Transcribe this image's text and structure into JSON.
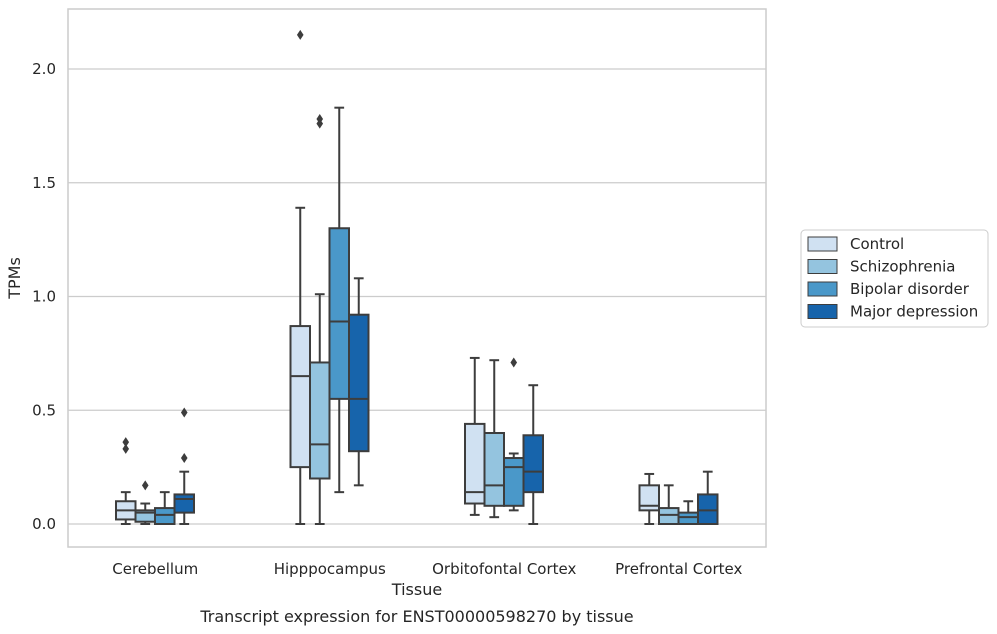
{
  "caption": "Transcript expression for ENST00000598270 by tissue",
  "chart_data": {
    "type": "boxplot",
    "xlabel": "Tissue",
    "ylabel": "TPMs",
    "ylim": [
      -0.1,
      2.27
    ],
    "yticks": [
      "0.0",
      "0.5",
      "1.0",
      "1.5",
      "2.0"
    ],
    "grid": "horizontal",
    "legend_position": "right",
    "categories": [
      "Cerebellum",
      "Hipppocampus",
      "Orbitofontal Cortex",
      "Prefrontal Cortex"
    ],
    "series": [
      {
        "name": "Control",
        "color": "#d0e1f2",
        "boxes": [
          {
            "whisker_low": 0.0,
            "q1": 0.02,
            "median": 0.06,
            "q3": 0.1,
            "whisker_high": 0.14,
            "outliers": [
              0.33,
              0.36
            ]
          },
          {
            "whisker_low": 0.0,
            "q1": 0.25,
            "median": 0.65,
            "q3": 0.87,
            "whisker_high": 1.39,
            "outliers": [
              2.15
            ]
          },
          {
            "whisker_low": 0.04,
            "q1": 0.09,
            "median": 0.14,
            "q3": 0.44,
            "whisker_high": 0.73,
            "outliers": []
          },
          {
            "whisker_low": 0.0,
            "q1": 0.06,
            "median": 0.08,
            "q3": 0.17,
            "whisker_high": 0.22,
            "outliers": []
          }
        ]
      },
      {
        "name": "Schizophrenia",
        "color": "#94c4df",
        "boxes": [
          {
            "whisker_low": 0.0,
            "q1": 0.01,
            "median": 0.05,
            "q3": 0.06,
            "whisker_high": 0.09,
            "outliers": [
              0.17
            ]
          },
          {
            "whisker_low": 0.0,
            "q1": 0.2,
            "median": 0.35,
            "q3": 0.71,
            "whisker_high": 1.01,
            "outliers": [
              1.76,
              1.78
            ]
          },
          {
            "whisker_low": 0.03,
            "q1": 0.08,
            "median": 0.17,
            "q3": 0.4,
            "whisker_high": 0.72,
            "outliers": []
          },
          {
            "whisker_low": 0.0,
            "q1": 0.0,
            "median": 0.04,
            "q3": 0.07,
            "whisker_high": 0.17,
            "outliers": []
          }
        ]
      },
      {
        "name": "Bipolar disorder",
        "color": "#4a98c9",
        "boxes": [
          {
            "whisker_low": 0.0,
            "q1": 0.0,
            "median": 0.04,
            "q3": 0.07,
            "whisker_high": 0.14,
            "outliers": []
          },
          {
            "whisker_low": 0.14,
            "q1": 0.55,
            "median": 0.89,
            "q3": 1.3,
            "whisker_high": 1.83,
            "outliers": []
          },
          {
            "whisker_low": 0.06,
            "q1": 0.08,
            "median": 0.25,
            "q3": 0.29,
            "whisker_high": 0.31,
            "outliers": [
              0.71
            ]
          },
          {
            "whisker_low": 0.0,
            "q1": 0.0,
            "median": 0.03,
            "q3": 0.05,
            "whisker_high": 0.1,
            "outliers": []
          }
        ]
      },
      {
        "name": "Major depression",
        "color": "#1764ab",
        "boxes": [
          {
            "whisker_low": 0.0,
            "q1": 0.05,
            "median": 0.11,
            "q3": 0.13,
            "whisker_high": 0.23,
            "outliers": [
              0.29,
              0.49
            ]
          },
          {
            "whisker_low": 0.17,
            "q1": 0.32,
            "median": 0.55,
            "q3": 0.92,
            "whisker_high": 1.08,
            "outliers": []
          },
          {
            "whisker_low": 0.0,
            "q1": 0.14,
            "median": 0.23,
            "q3": 0.39,
            "whisker_high": 0.61,
            "outliers": []
          },
          {
            "whisker_low": 0.0,
            "q1": 0.0,
            "median": 0.06,
            "q3": 0.13,
            "whisker_high": 0.23,
            "outliers": []
          }
        ]
      }
    ]
  }
}
